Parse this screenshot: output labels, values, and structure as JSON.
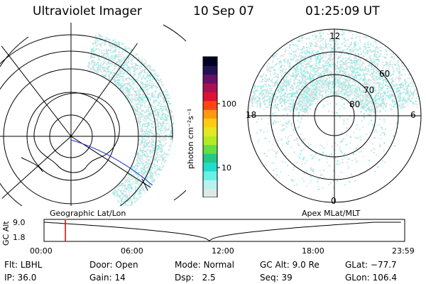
{
  "header": {
    "instrument": "Ultraviolet Imager",
    "date": "10 Sep 07",
    "time": "01:25:09 UT"
  },
  "left_map": {
    "caption": "Geographic Lat/Lon",
    "path_color": "#2233cc"
  },
  "right_map": {
    "caption": "Apex MLat/MLT",
    "mlt_labels": {
      "top": "12",
      "left": "18",
      "right": "6",
      "bottom": "0"
    },
    "lat_labels": [
      "60",
      "70",
      "80"
    ]
  },
  "colorbar": {
    "unit_label": "photon cm⁻²s⁻¹",
    "ticks": [
      "100",
      "10"
    ],
    "colors": [
      "#dde8e8",
      "#b5f3ef",
      "#66f0e8",
      "#22dccc",
      "#22c888",
      "#66dd44",
      "#b4ea22",
      "#e6e622",
      "#ffcc11",
      "#ff9911",
      "#ff4411",
      "#dd1133",
      "#aa1155",
      "#661166",
      "#221155",
      "#000022"
    ]
  },
  "timeline": {
    "axis_title": "GC Alt",
    "y_ticks": [
      "9.0",
      "1.8"
    ],
    "x_ticks": [
      "00:00",
      "06:00",
      "12:00",
      "18:00",
      "23:59"
    ],
    "marker_time": "01:25:09",
    "marker_color": "#dd0000"
  },
  "status": {
    "flt_label": "Flt:",
    "flt": "LBHL",
    "ip_label": "IP:",
    "ip": "36.0",
    "door_label": "Door:",
    "door": "Open",
    "gain_label": "Gain:",
    "gain": "14",
    "mode_label": "Mode:",
    "mode": "Normal",
    "dsp_label": "Dsp:",
    "dsp": "2.5",
    "gcalt_label": "GC Alt:",
    "gcalt": "9.0 Re",
    "seq_label": "Seq:",
    "seq": "39",
    "glat_label": "GLat:",
    "glat": "−77.7",
    "glon_label": "GLon:",
    "glon": "106.4"
  }
}
